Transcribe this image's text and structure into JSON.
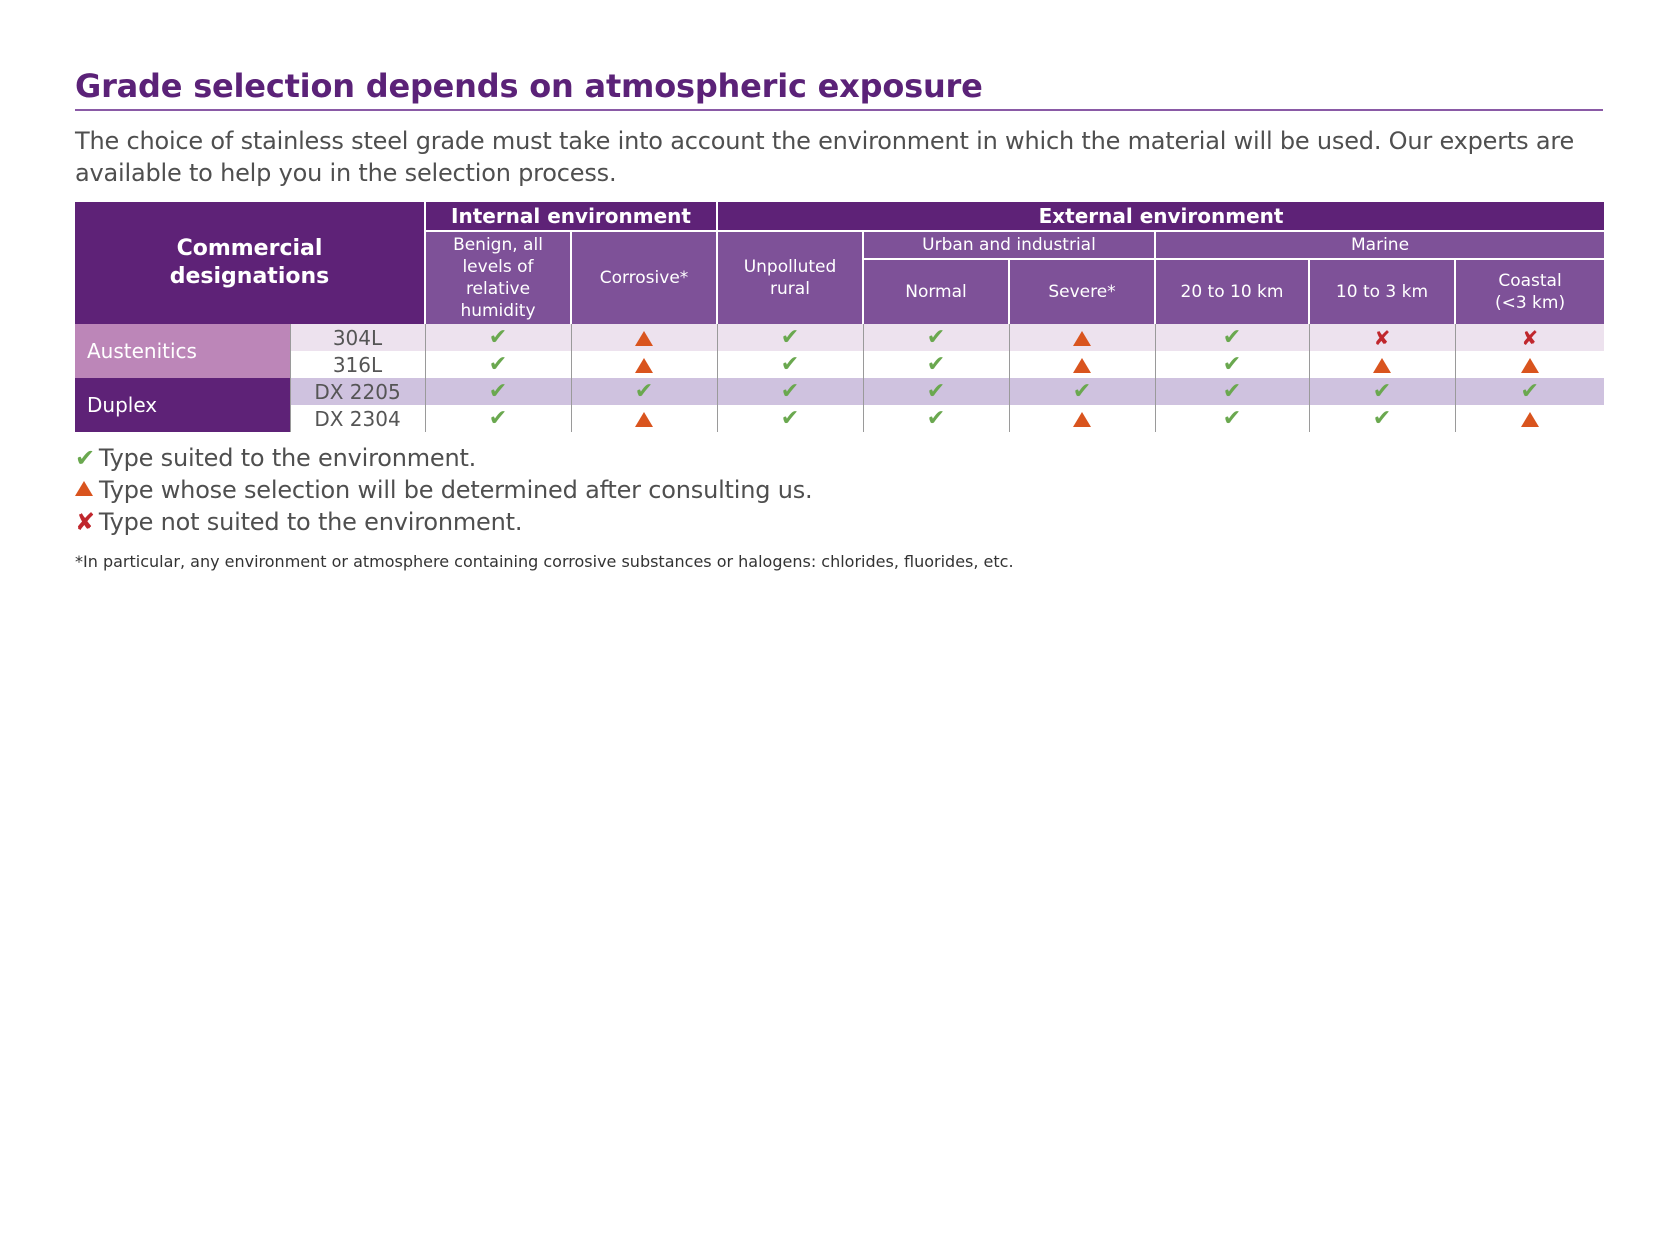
{
  "title": "Grade selection depends on atmospheric exposure",
  "intro": "The choice of stainless steel grade must take into account the environment in which the material will be used. Our experts are available to help you in the selection process.",
  "symbols": {
    "suited": "✔",
    "consult": "▲",
    "not_suited": "✘"
  },
  "colors": {
    "header_dark": "#5e2277",
    "header_mid": "#7e5198",
    "austenitics": "#bc86b8",
    "suited": "#6aa84f",
    "consult": "#d9541e",
    "not_suited": "#c0272d"
  },
  "table": {
    "corner": "Commercial designations",
    "internal": "Internal environment",
    "external": "External environment",
    "urban_group": "Urban and industrial",
    "marine_group": "Marine",
    "columns": [
      "Benign, all levels of relative humidity",
      "Corrosive*",
      "Unpolluted rural",
      "Normal",
      "Severe*",
      "20 to 10 km",
      "10 to 3 km",
      "Coastal (<3 km)"
    ],
    "families": [
      {
        "name": "Austenitics",
        "grades": [
          "304L",
          "316L"
        ]
      },
      {
        "name": "Duplex",
        "grades": [
          "DX 2205",
          "DX 2304"
        ]
      }
    ],
    "ratings": {
      "304L": [
        "suited",
        "consult",
        "suited",
        "suited",
        "consult",
        "suited",
        "not_suited",
        "not_suited"
      ],
      "316L": [
        "suited",
        "consult",
        "suited",
        "suited",
        "consult",
        "suited",
        "consult",
        "consult"
      ],
      "DX 2205": [
        "suited",
        "suited",
        "suited",
        "suited",
        "suited",
        "suited",
        "suited",
        "suited"
      ],
      "DX 2304": [
        "suited",
        "consult",
        "suited",
        "suited",
        "consult",
        "suited",
        "suited",
        "consult"
      ]
    }
  },
  "legend": {
    "suited": "Type suited to the environment.",
    "consult": "Type whose selection will be determined after consulting us.",
    "not_suited": "Type not suited to the environment."
  },
  "footnote": "*In particular, any environment or atmosphere containing corrosive substances or halogens: chlorides, fluorides, etc."
}
